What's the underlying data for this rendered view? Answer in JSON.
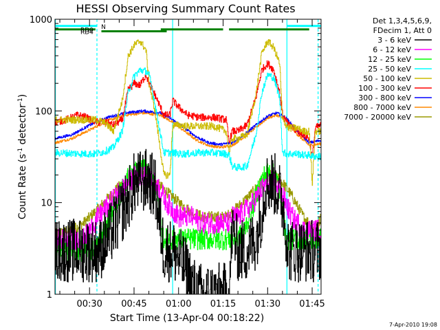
{
  "chart_data": {
    "type": "line",
    "title": "HESSI Observing Summary Count Rates",
    "xlabel": "Start Time (13-Apr-04 00:18:22)",
    "ylabel_prefix": "Count Rate (s",
    "ylabel_sup1": "-1",
    "ylabel_mid": " detector",
    "ylabel_sup2": "-1",
    "ylabel_suffix": ")",
    "footer": "7-Apr-2010 19:08",
    "y_scale": "log",
    "ylim": [
      1,
      1000
    ],
    "xlim_minutes": [
      18.37,
      108.0
    ],
    "x_ticks": [
      {
        "minute": 30,
        "label": "00:30"
      },
      {
        "minute": 45,
        "label": "00:45"
      },
      {
        "minute": 60,
        "label": "01:00"
      },
      {
        "minute": 75,
        "label": "01:15"
      },
      {
        "minute": 90,
        "label": "01:30"
      },
      {
        "minute": 105,
        "label": "01:45"
      }
    ],
    "y_ticks": [
      {
        "value": 1,
        "label": "1"
      },
      {
        "value": 10,
        "label": "10"
      },
      {
        "value": 100,
        "label": "100"
      },
      {
        "value": 1000,
        "label": "1000"
      }
    ],
    "legend_header": [
      "Det 1,3,4,5,6,9,",
      "FDecim 1, Att 0"
    ],
    "legend_position": "right",
    "series": [
      {
        "name": "3 - 6 keV",
        "color": "#000000",
        "x": [
          18.4,
          28,
          30,
          33,
          36,
          40,
          44,
          45,
          48,
          50,
          52,
          55,
          58,
          62,
          66,
          70,
          74,
          77,
          78,
          80,
          83,
          86,
          88,
          89,
          91,
          93,
          95,
          97,
          99,
          100,
          102,
          104,
          106,
          108
        ],
        "y": [
          3,
          3,
          3,
          3,
          4,
          7,
          13,
          16,
          17,
          18,
          14,
          3,
          3,
          2,
          1,
          1,
          1,
          1,
          5,
          3,
          3,
          4,
          8,
          15,
          17,
          15,
          10,
          3,
          3,
          3,
          3,
          3,
          3,
          3
        ]
      },
      {
        "name": "6 - 12 keV",
        "color": "#ff00ff",
        "x": [
          18.4,
          28,
          30,
          33,
          36,
          40,
          43,
          45,
          47,
          50,
          53,
          56,
          60,
          64,
          68,
          72,
          75,
          77,
          78,
          80,
          82,
          84,
          86,
          88,
          90,
          92,
          94,
          96,
          98,
          100,
          102,
          104,
          106,
          108
        ],
        "y": [
          4,
          4,
          5,
          7,
          9,
          13,
          17,
          19,
          20,
          19,
          15,
          10,
          7,
          7,
          6,
          6,
          6,
          6,
          7,
          7,
          8,
          9,
          11,
          14,
          17,
          17,
          14,
          10,
          7,
          6,
          5,
          5,
          5,
          5
        ]
      },
      {
        "name": "12 - 25 keV",
        "color": "#00ff00",
        "x": [
          18.4,
          28,
          30,
          32,
          35,
          38,
          41,
          43,
          45,
          47,
          49,
          51,
          53,
          55,
          58,
          60,
          63,
          67,
          72,
          77,
          78,
          80,
          82,
          85,
          87,
          89,
          91,
          93,
          95,
          96,
          97,
          99,
          100,
          102,
          104,
          106,
          108
        ],
        "y": [
          3,
          3,
          3,
          3,
          5,
          9,
          14,
          19,
          22,
          23,
          22,
          18,
          10,
          4,
          4,
          4,
          4,
          4,
          4,
          4,
          4,
          4,
          5,
          9,
          15,
          20,
          22,
          18,
          10,
          4,
          4,
          4,
          4,
          4,
          4,
          4,
          4
        ]
      },
      {
        "name": "25 - 50 keV",
        "color": "#00ffff",
        "x": [
          18.4,
          29,
          30,
          32,
          35,
          38,
          41,
          43,
          45,
          47,
          49,
          50,
          52,
          55,
          57,
          58,
          60,
          63,
          67,
          72,
          76,
          77,
          78,
          80,
          83,
          86,
          88,
          90,
          92,
          94,
          95,
          97,
          100,
          102,
          104,
          105,
          106,
          108
        ],
        "y": [
          35,
          34,
          34,
          34,
          36,
          40,
          60,
          160,
          240,
          280,
          270,
          250,
          120,
          35,
          35,
          35,
          34,
          34,
          35,
          35,
          34,
          33,
          25,
          24,
          25,
          55,
          160,
          250,
          230,
          140,
          35,
          34,
          34,
          33,
          33,
          32,
          32,
          32
        ]
      },
      {
        "name": "50 - 100 keV",
        "color": "#ccbb00",
        "x": [
          18.4,
          29,
          30,
          32,
          35,
          38,
          41,
          43,
          45,
          47,
          49,
          50,
          52,
          55,
          57,
          58,
          60,
          63,
          67,
          72,
          76,
          77,
          78,
          80,
          83,
          86,
          88,
          90,
          92,
          94,
          95,
          97,
          100,
          102,
          104,
          105,
          106,
          108
        ],
        "y": [
          80,
          80,
          80,
          80,
          75,
          60,
          130,
          400,
          520,
          580,
          460,
          200,
          100,
          20,
          20,
          70,
          70,
          68,
          68,
          68,
          60,
          35,
          50,
          50,
          55,
          150,
          430,
          580,
          490,
          330,
          80,
          65,
          65,
          60,
          60,
          16,
          60,
          60
        ]
      },
      {
        "name": "100 - 300 keV",
        "color": "#ff0000",
        "x": [
          18.4,
          22,
          26,
          29,
          30,
          33,
          36,
          38,
          41,
          43,
          45,
          47,
          49,
          50,
          52,
          55,
          57,
          58,
          60,
          63,
          67,
          72,
          76,
          77,
          78,
          80,
          83,
          86,
          88,
          90,
          92,
          94,
          95,
          97,
          100,
          102,
          104,
          105,
          106,
          108
        ],
        "y": [
          75,
          80,
          90,
          85,
          80,
          75,
          75,
          70,
          80,
          170,
          200,
          190,
          250,
          200,
          150,
          90,
          90,
          130,
          110,
          90,
          85,
          85,
          80,
          45,
          60,
          60,
          70,
          140,
          280,
          330,
          280,
          160,
          90,
          70,
          60,
          55,
          50,
          30,
          65,
          70
        ]
      },
      {
        "name": "300 - 800 keV",
        "color": "#0000ff",
        "x": [
          18.4,
          24,
          30,
          36,
          42,
          48,
          54,
          58,
          62,
          66,
          70,
          74,
          78,
          82,
          86,
          90,
          93,
          96,
          100,
          104,
          108
        ],
        "y": [
          50,
          55,
          70,
          85,
          95,
          100,
          95,
          80,
          65,
          52,
          45,
          43,
          45,
          55,
          70,
          88,
          95,
          85,
          60,
          45,
          48
        ]
      },
      {
        "name": "800 - 7000 keV",
        "color": "#ff8800",
        "x": [
          18.4,
          24,
          30,
          36,
          42,
          48,
          54,
          58,
          62,
          66,
          70,
          74,
          78,
          82,
          86,
          90,
          93,
          96,
          100,
          104,
          108
        ],
        "y": [
          45,
          50,
          62,
          78,
          90,
          95,
          90,
          75,
          60,
          48,
          42,
          40,
          42,
          52,
          66,
          84,
          90,
          80,
          55,
          42,
          44
        ]
      },
      {
        "name": "7000 - 20000 keV",
        "color": "#999900",
        "x": [
          18.4,
          24,
          28,
          32,
          36,
          40,
          44,
          48,
          52,
          56,
          60,
          64,
          68,
          72,
          76,
          80,
          84,
          88,
          91,
          94,
          98,
          102,
          106,
          108
        ],
        "y": [
          4.5,
          5,
          6,
          8,
          11,
          15,
          19,
          20,
          17,
          13,
          10,
          8,
          7,
          7,
          7,
          9,
          12,
          17,
          20,
          18,
          12,
          7,
          5,
          7
        ]
      }
    ],
    "attenuator_bars": [
      {
        "label": "N",
        "color": "#00ffff",
        "segments": [
          [
            18.4,
            32.5
          ],
          [
            96.5,
            108
          ]
        ],
        "level": 1.4,
        "label_at": 33
      },
      {
        "label": "RD0",
        "color": "#008000",
        "segments": [
          [
            18.4,
            32
          ],
          [
            54,
            75
          ],
          [
            77,
            104
          ]
        ],
        "level": 2.1,
        "label_at": 26
      },
      {
        "label": "RD4",
        "color": "#008000",
        "segments": [
          [
            34,
            56
          ]
        ],
        "level": 2.5,
        "label_at": 26
      }
    ],
    "vertical_markers": [
      {
        "minute": 18.5,
        "color": "#00ffff",
        "style": "solid"
      },
      {
        "minute": 32.5,
        "color": "#00ffff",
        "style": "dashed"
      },
      {
        "minute": 58,
        "color": "#00ffff",
        "style": "solid"
      },
      {
        "minute": 96.5,
        "color": "#00ffff",
        "style": "solid"
      },
      {
        "minute": 107,
        "color": "#00ffff",
        "style": "dashed"
      }
    ]
  }
}
